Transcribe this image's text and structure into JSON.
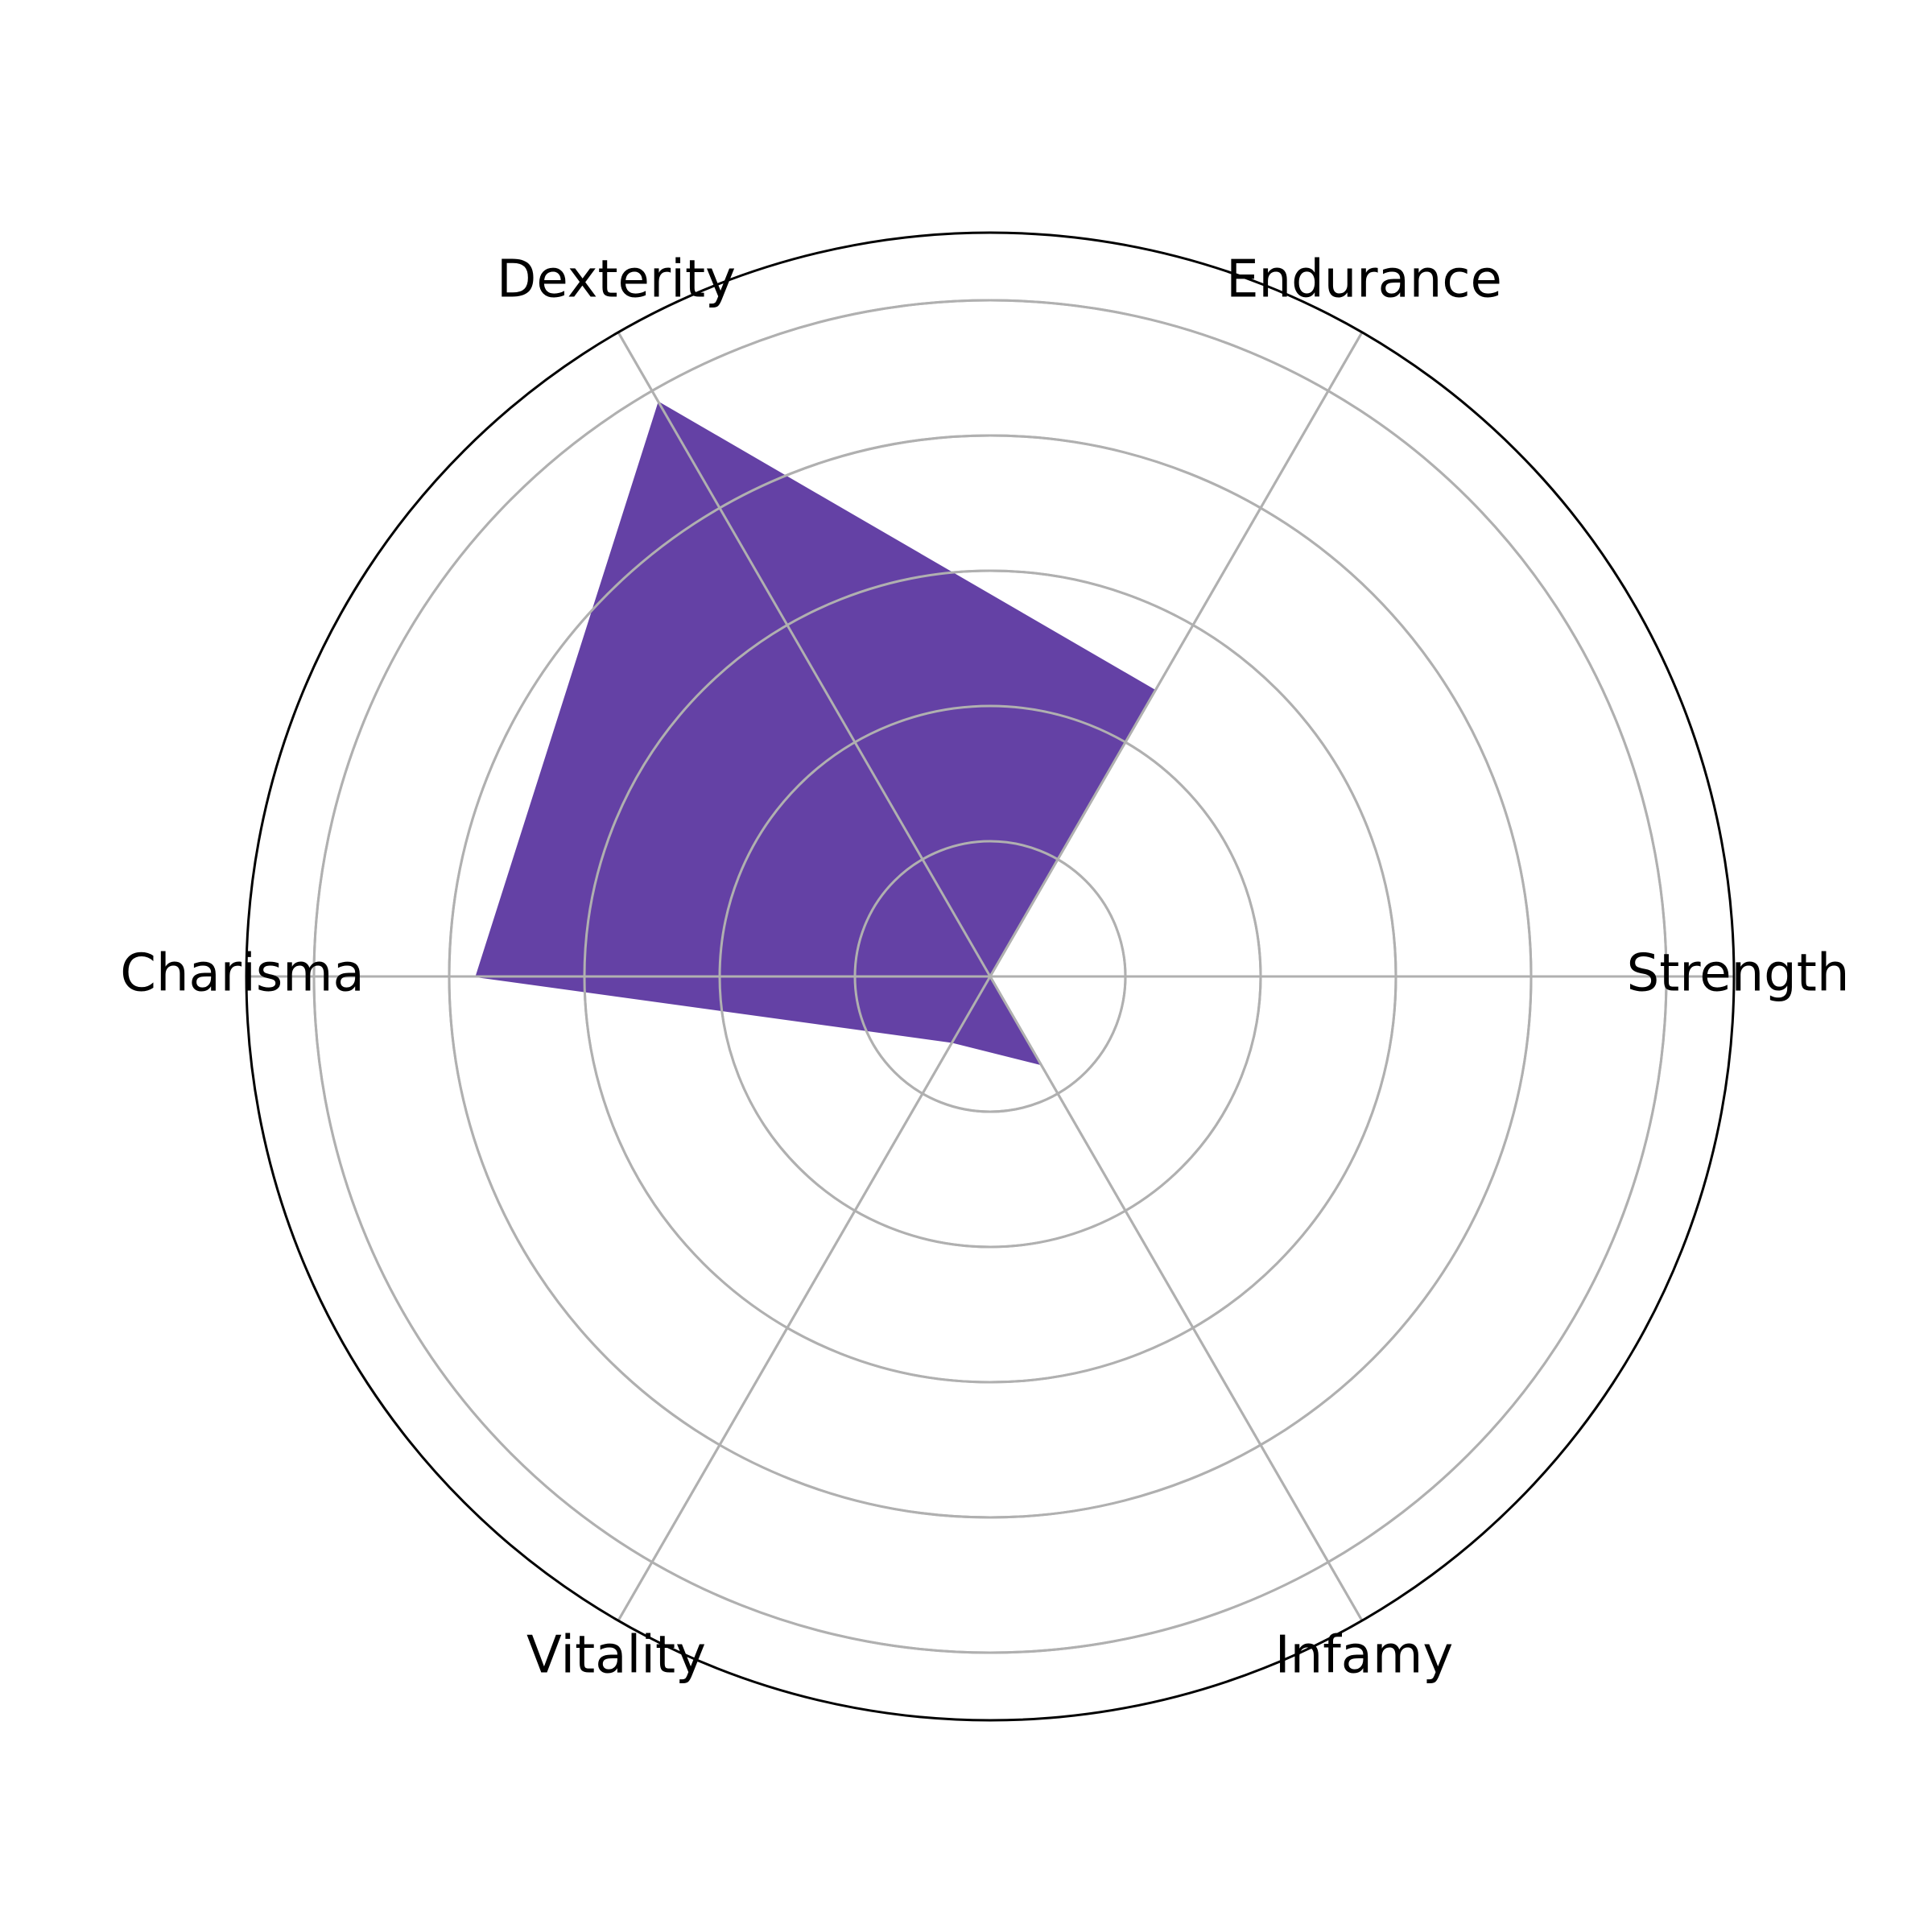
{
  "chart_data": {
    "type": "radar",
    "categories": [
      "Strength",
      "Endurance",
      "Dexterity",
      "Charisma",
      "Vitality",
      "Infamy"
    ],
    "values": [
      0,
      2.44,
      4.9,
      3.8,
      0.56,
      0.75
    ],
    "rlim": [
      0,
      5.5
    ],
    "rings": [
      1,
      2,
      3,
      4,
      5
    ],
    "grid": true,
    "colors": {
      "fill": "#6441a5",
      "grid": "#b0b0b0",
      "frame": "#000000"
    }
  }
}
